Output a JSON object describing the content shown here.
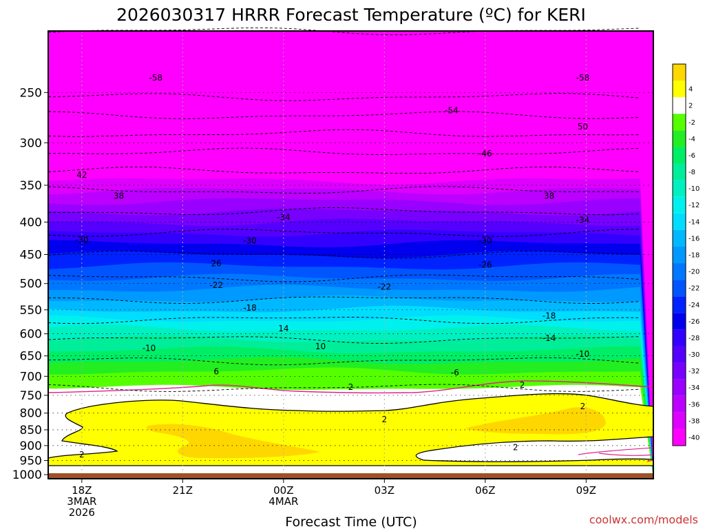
{
  "chart_data": {
    "type": "heatmap",
    "title": "2026030317 HRRR Forecast Temperature (ºC) for KERI",
    "xlabel": "Forecast Time (UTC)",
    "ylabel": "",
    "credit": "coolwx.com/models",
    "x_ticks": [
      {
        "value": 0,
        "lines": [
          "18Z",
          "3MAR",
          "2026"
        ]
      },
      {
        "value": 3,
        "lines": [
          "21Z"
        ]
      },
      {
        "value": 6,
        "lines": [
          "00Z",
          "4MAR"
        ]
      },
      {
        "value": 9,
        "lines": [
          "03Z"
        ]
      },
      {
        "value": 12,
        "lines": [
          "06Z"
        ]
      },
      {
        "value": 15,
        "lines": [
          "09Z"
        ]
      }
    ],
    "xlim": [
      -1,
      17
    ],
    "y_ticks": [
      250,
      300,
      350,
      400,
      450,
      500,
      550,
      600,
      650,
      700,
      750,
      800,
      850,
      900,
      950,
      1000
    ],
    "ylim": [
      1015,
      200
    ],
    "y_scale": "log",
    "ground_top": 995,
    "temperature_profile": [
      {
        "p": 200,
        "t": -62
      },
      {
        "p": 250,
        "t": -59
      },
      {
        "p": 300,
        "t": -48
      },
      {
        "p": 350,
        "t": -39
      },
      {
        "p": 400,
        "t": -32
      },
      {
        "p": 450,
        "t": -26
      },
      {
        "p": 500,
        "t": -21
      },
      {
        "p": 550,
        "t": -16
      },
      {
        "p": 600,
        "t": -11
      },
      {
        "p": 650,
        "t": -7
      },
      {
        "p": 700,
        "t": -3
      },
      {
        "p": 730,
        "t": -2
      },
      {
        "p": 755,
        "t": 1
      },
      {
        "p": 790,
        "t": 2
      },
      {
        "p": 850,
        "t": 3
      },
      {
        "p": 900,
        "t": 3
      },
      {
        "p": 950,
        "t": 2
      },
      {
        "p": 1000,
        "t": 2
      }
    ],
    "color_levels": [
      {
        "label": "",
        "color": "#ffd700"
      },
      {
        "label": "4",
        "color": "#ffff00"
      },
      {
        "label": "2",
        "color": "#ffffff"
      },
      {
        "label": "-2",
        "color": "#55ff00"
      },
      {
        "label": "-4",
        "color": "#22ee22"
      },
      {
        "label": "-6",
        "color": "#00ee66"
      },
      {
        "label": "-8",
        "color": "#00ee99"
      },
      {
        "label": "-10",
        "color": "#00f0c0"
      },
      {
        "label": "-12",
        "color": "#00f0ee"
      },
      {
        "label": "-14",
        "color": "#00ddff"
      },
      {
        "label": "-16",
        "color": "#00b8ff"
      },
      {
        "label": "-18",
        "color": "#0099ff"
      },
      {
        "label": "-20",
        "color": "#0077ff"
      },
      {
        "label": "-22",
        "color": "#0055ff"
      },
      {
        "label": "-24",
        "color": "#0022ff"
      },
      {
        "label": "-26",
        "color": "#0000ee"
      },
      {
        "label": "-28",
        "color": "#3300ff"
      },
      {
        "label": "-30",
        "color": "#5500ff"
      },
      {
        "label": "-32",
        "color": "#7700ff"
      },
      {
        "label": "-34",
        "color": "#9900ff"
      },
      {
        "label": "-36",
        "color": "#bb00ff"
      },
      {
        "label": "-38",
        "color": "#dd00ff"
      },
      {
        "label": "-40",
        "color": "#ff00ff"
      }
    ],
    "contour_labels": [
      {
        "x": 2.2,
        "p": 237,
        "text": "-58"
      },
      {
        "x": 14.9,
        "p": 237,
        "text": "-58"
      },
      {
        "x": 11.0,
        "p": 267,
        "text": "-54"
      },
      {
        "x": 14.9,
        "p": 283,
        "text": "50"
      },
      {
        "x": 12.0,
        "p": 312,
        "text": "-46"
      },
      {
        "x": 0.0,
        "p": 337,
        "text": "42"
      },
      {
        "x": 1.1,
        "p": 364,
        "text": "38"
      },
      {
        "x": 13.9,
        "p": 364,
        "text": "38"
      },
      {
        "x": 6.0,
        "p": 393,
        "text": "-34"
      },
      {
        "x": 14.9,
        "p": 397,
        "text": "-34"
      },
      {
        "x": 0.0,
        "p": 427,
        "text": "-30"
      },
      {
        "x": 5.0,
        "p": 428,
        "text": "-30"
      },
      {
        "x": 12.0,
        "p": 428,
        "text": "-30"
      },
      {
        "x": 4.0,
        "p": 465,
        "text": "26"
      },
      {
        "x": 12.0,
        "p": 467,
        "text": "-26"
      },
      {
        "x": 4.0,
        "p": 503,
        "text": "-22"
      },
      {
        "x": 9.0,
        "p": 506,
        "text": "-22"
      },
      {
        "x": 5.0,
        "p": 546,
        "text": "-18"
      },
      {
        "x": 13.9,
        "p": 562,
        "text": "-18"
      },
      {
        "x": 6.0,
        "p": 589,
        "text": "14"
      },
      {
        "x": 13.9,
        "p": 610,
        "text": "-14"
      },
      {
        "x": 2.0,
        "p": 632,
        "text": "-10"
      },
      {
        "x": 7.1,
        "p": 628,
        "text": "10"
      },
      {
        "x": 14.9,
        "p": 646,
        "text": "-10"
      },
      {
        "x": 4.0,
        "p": 688,
        "text": "6"
      },
      {
        "x": 11.1,
        "p": 691,
        "text": "-6"
      },
      {
        "x": 8.0,
        "p": 728,
        "text": "2"
      },
      {
        "x": 13.1,
        "p": 723,
        "text": "2"
      },
      {
        "x": 14.9,
        "p": 781,
        "text": "2"
      },
      {
        "x": 9.0,
        "p": 819,
        "text": "2"
      },
      {
        "x": 12.9,
        "p": 906,
        "text": "2"
      },
      {
        "x": 0.0,
        "p": 930,
        "text": "2"
      }
    ]
  }
}
